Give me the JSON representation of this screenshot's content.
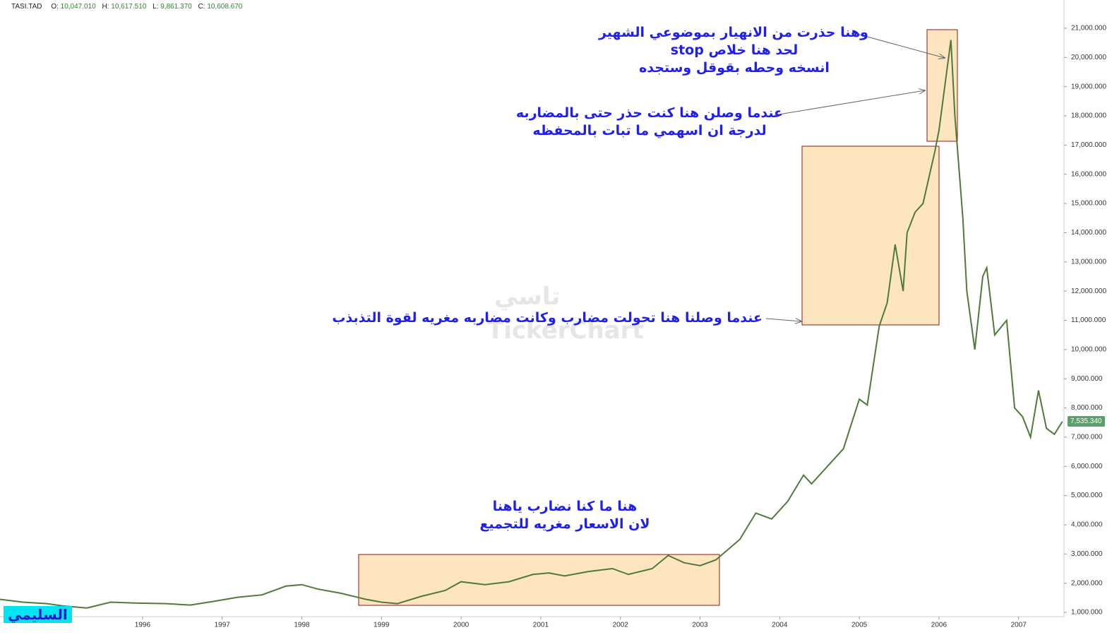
{
  "chart_data": {
    "type": "line",
    "header": {
      "symbol": "TASI.TAD",
      "open_label": "O:",
      "open": "10,047.010",
      "high_label": "H:",
      "high": "10,617.510",
      "low_label": "L:",
      "low": "9,861.370",
      "close_label": "C:",
      "close": "10,608.670"
    },
    "x": [
      1994.2,
      1994.5,
      1994.8,
      1995.0,
      1995.3,
      1995.6,
      1995.9,
      1996.3,
      1996.6,
      1996.9,
      1997.2,
      1997.5,
      1997.8,
      1998.0,
      1998.2,
      1998.5,
      1998.8,
      1999.0,
      1999.2,
      1999.5,
      1999.8,
      2000.0,
      2000.3,
      2000.6,
      2000.9,
      2001.1,
      2001.3,
      2001.6,
      2001.9,
      2002.1,
      2002.4,
      2002.6,
      2002.8,
      2003.0,
      2003.2,
      2003.5,
      2003.7,
      2003.9,
      2004.1,
      2004.3,
      2004.4,
      2004.7,
      2004.8,
      2005.0,
      2005.1,
      2005.25,
      2005.35,
      2005.45,
      2005.55,
      2005.6,
      2005.7,
      2005.8,
      2005.95,
      2006.0,
      2006.15,
      2006.2,
      2006.3,
      2006.35,
      2006.45,
      2006.55,
      2006.6,
      2006.7,
      2006.85,
      2006.95,
      2007.05,
      2007.15,
      2007.25,
      2007.35,
      2007.45,
      2007.55
    ],
    "series": [
      {
        "name": "TASI.TAD",
        "color": "#4f7a3c",
        "values": [
          1450,
          1350,
          1300,
          1220,
          1150,
          1350,
          1320,
          1300,
          1250,
          1380,
          1520,
          1600,
          1900,
          1950,
          1800,
          1650,
          1450,
          1350,
          1300,
          1550,
          1750,
          2050,
          1950,
          2050,
          2300,
          2350,
          2250,
          2400,
          2500,
          2300,
          2500,
          2950,
          2700,
          2600,
          2800,
          3500,
          4400,
          4200,
          4800,
          5700,
          5400,
          6300,
          6600,
          8300,
          8100,
          10800,
          11600,
          13600,
          12000,
          14000,
          14700,
          15000,
          16800,
          17500,
          20600,
          18000,
          14500,
          12000,
          10000,
          12500,
          12800,
          10500,
          11000,
          8000,
          7700,
          7000,
          8600,
          7300,
          7100,
          7535
        ]
      }
    ],
    "last_label": "7,535.340",
    "xlim": [
      1994.21,
      2007.57
    ],
    "xticks": [
      1996,
      1997,
      1998,
      1999,
      2000,
      2001,
      2002,
      2003,
      2004,
      2005,
      2006,
      2007
    ],
    "ylim": [
      855,
      21967
    ],
    "yticks": [
      {
        "value": 1000,
        "label": "1,000.000"
      },
      {
        "value": 2000,
        "label": "2,000.000"
      },
      {
        "value": 3000,
        "label": "3,000.000"
      },
      {
        "value": 4000,
        "label": "4,000.000"
      },
      {
        "value": 5000,
        "label": "5,000.000"
      },
      {
        "value": 6000,
        "label": "6,000.000"
      },
      {
        "value": 7000,
        "label": "7,000.000"
      },
      {
        "value": 8000,
        "label": "8,000.000"
      },
      {
        "value": 9000,
        "label": "9,000.000"
      },
      {
        "value": 10000,
        "label": "10,000.000"
      },
      {
        "value": 11000,
        "label": "11,000.000"
      },
      {
        "value": 12000,
        "label": "12,000.000"
      },
      {
        "value": 13000,
        "label": "13,000.000"
      },
      {
        "value": 14000,
        "label": "14,000.000"
      },
      {
        "value": 15000,
        "label": "15,000.000"
      },
      {
        "value": 16000,
        "label": "16,000.000"
      },
      {
        "value": 17000,
        "label": "17,000.000"
      },
      {
        "value": 18000,
        "label": "18,000.000"
      },
      {
        "value": 19000,
        "label": "19,000.000"
      },
      {
        "value": 20000,
        "label": "20,000.000"
      },
      {
        "value": 21000,
        "label": "21,000.000"
      }
    ],
    "annotations": [
      [
        "وهنا حذرت من الانهيار بموضوعي الشهير",
        "لحد هنا خلاص stop",
        "انسخه وحطه بقوقل وستجده"
      ],
      [
        "عندما وصلن هنا كنت حذر حتى بالمضاربه",
        "لدرجة ان اسهمي ما تبات بالمحفظه"
      ],
      [
        "عندما وصلنا هنا تحولت مضارب وكانت مضاربه مغريه لقوة التذبذب"
      ],
      [
        "هنا ما كنا نضارب ياهنا",
        "لان الاسعار مغريه للتجميع"
      ]
    ],
    "watermark": [
      "تاسي",
      "TickerChart"
    ],
    "signature": "السليمي"
  }
}
